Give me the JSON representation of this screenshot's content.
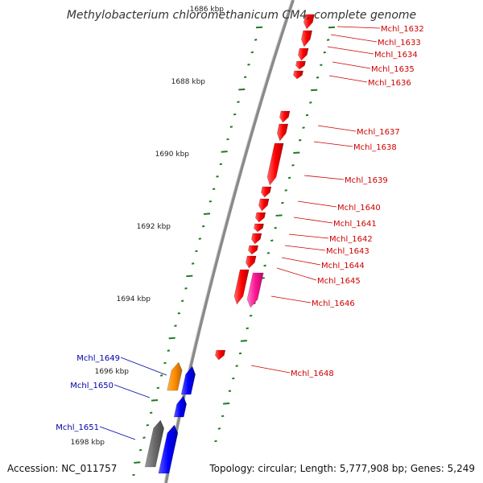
{
  "title": "Methylobacterium chloromethanicum CM4, complete genome",
  "footer": {
    "accession": "Accession: NC_011757",
    "topology": "Topology: circular; Length: 5,777,908 bp; Genes: 5,249"
  },
  "colors": {
    "backbone": "#8a8a8a",
    "tick": "#1f7a1f",
    "forward_gene": "#ff0000",
    "reverse_gene": "#0000ff",
    "highlight_gene": "#ff1493",
    "orange_gene": "#ff8c00",
    "gray_gene": "#666666",
    "forward_label": "#cc0000",
    "reverse_label": "#0000aa"
  },
  "kbp_labels": [
    "1686 kbp",
    "1688 kbp",
    "1690 kbp",
    "1692 kbp",
    "1694 kbp",
    "1696 kbp",
    "1698 kbp"
  ],
  "forward_labels": [
    "Mchl_1632",
    "Mchl_1633",
    "Mchl_1634",
    "Mchl_1635",
    "Mchl_1636",
    "Mchl_1637",
    "Mchl_1638",
    "Mchl_1639",
    "Mchl_1640",
    "Mchl_1641",
    "Mchl_1642",
    "Mchl_1643",
    "Mchl_1644",
    "Mchl_1645",
    "Mchl_1646",
    "Mchl_1648"
  ],
  "reverse_labels": [
    "Mchl_1649",
    "Mchl_1650",
    "Mchl_1651"
  ]
}
